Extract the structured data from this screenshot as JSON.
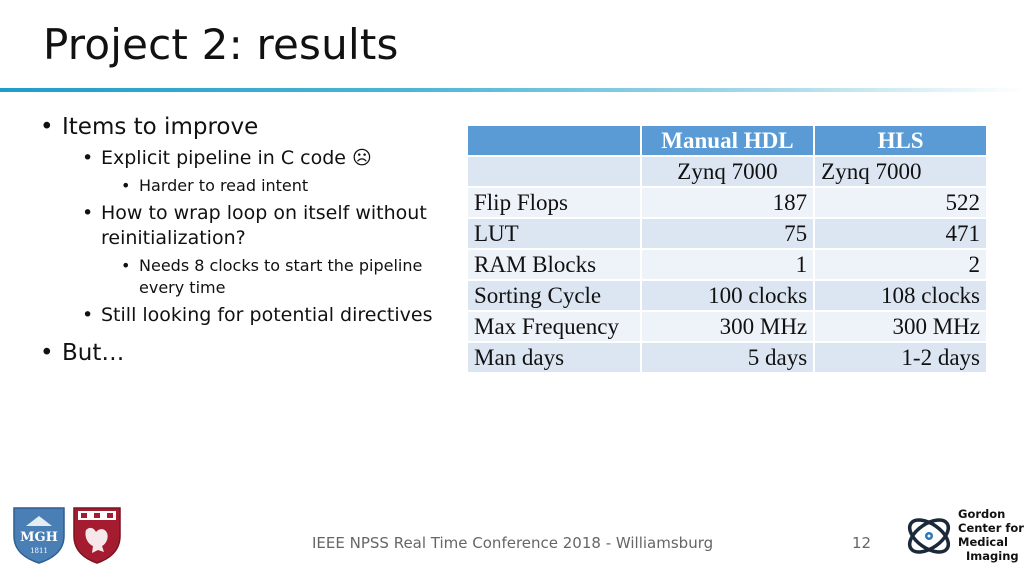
{
  "slide": {
    "title": "Project 2: results",
    "bullets": {
      "b1": "Items to improve",
      "b1_1": "Explicit pipeline in C code ☹",
      "b1_1_1": "Harder to read intent",
      "b1_2": "How to wrap loop on itself without reinitialization?",
      "b1_2_1": "Needs 8 clocks to start the pipeline every time",
      "b1_3": "Still looking for potential directives",
      "b2": "But…"
    }
  },
  "table": {
    "headers": [
      "",
      "Manual HDL",
      "HLS"
    ],
    "subheader": [
      "",
      "Zynq 7000",
      "Zynq 7000"
    ],
    "rows": [
      [
        "Flip Flops",
        "187",
        "522"
      ],
      [
        "LUT",
        "75",
        "471"
      ],
      [
        "RAM Blocks",
        "1",
        "2"
      ],
      [
        "Sorting Cycle",
        "100 clocks",
        "108 clocks"
      ],
      [
        "Max Frequency",
        "300 MHz",
        "300 MHz"
      ],
      [
        "Man days",
        "5 days",
        "1-2 days"
      ]
    ]
  },
  "footer": {
    "text": "IEEE NPSS Real Time Conference 2018 - Williamsburg",
    "page": "12"
  },
  "logos": {
    "mgh_text": "MGH",
    "mgh_year": "1811",
    "gordon": [
      "Gordon",
      "Center for",
      "Medical",
      "Imaging"
    ]
  },
  "colors": {
    "accent": "#1f9dc8",
    "table_header": "#5b9bd5",
    "table_row_dark": "#dce6f2",
    "table_row_light": "#eef3f9",
    "mgh_blue": "#4a7fb5",
    "hms_red": "#a51c30"
  }
}
